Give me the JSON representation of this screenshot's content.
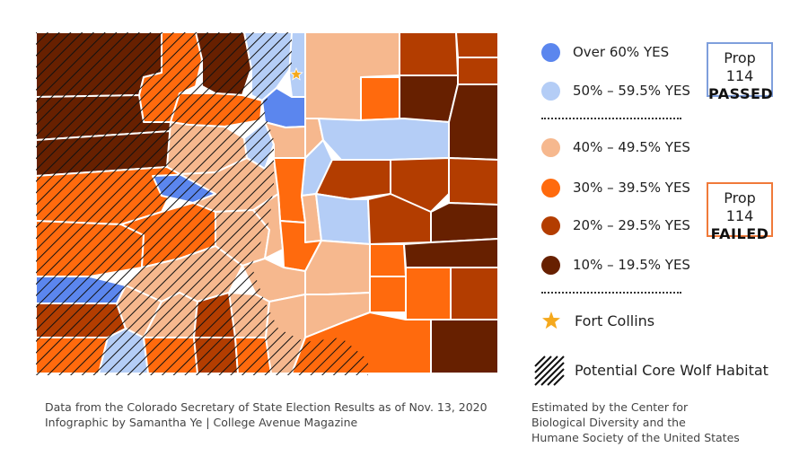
{
  "colors": {
    "over60": "#5b86ee",
    "50to59": "#b4cdf6",
    "40to49": "#f6b88e",
    "30to39": "#ff6a0d",
    "20to29": "#b33d00",
    "10to19": "#672000",
    "passed_border": "#7f9fdc",
    "failed_border": "#f07a3a",
    "star": "#f5a91d"
  },
  "legend": {
    "items": [
      {
        "key": "over60",
        "label": "Over 60% YES"
      },
      {
        "key": "50to59",
        "label": "50% – 59.5% YES"
      },
      {
        "key": "40to49",
        "label": "40% – 49.5% YES"
      },
      {
        "key": "30to39",
        "label": "30% – 39.5% YES"
      },
      {
        "key": "20to29",
        "label": "20% – 29.5% YES"
      },
      {
        "key": "10to19",
        "label": "10% – 19.5% YES"
      }
    ],
    "fort_collins": "Fort Collins",
    "wolf_habitat": "Potential Core Wolf Habitat"
  },
  "passed_box": {
    "line1": "Prop 114",
    "line2": "PASSED"
  },
  "failed_box": {
    "line1": "Prop 114",
    "line2": "FAILED"
  },
  "source": {
    "line1": "Data from the Colorado Secretary of State Election Results as of Nov. 13, 2020",
    "line2": "Infographic by Samantha Ye | College Avenue Magazine"
  },
  "habitat_note": {
    "line1": "Estimated by the Center for",
    "line2": "Biological Diversity and the",
    "line3": "Humane Society of the United States"
  }
}
